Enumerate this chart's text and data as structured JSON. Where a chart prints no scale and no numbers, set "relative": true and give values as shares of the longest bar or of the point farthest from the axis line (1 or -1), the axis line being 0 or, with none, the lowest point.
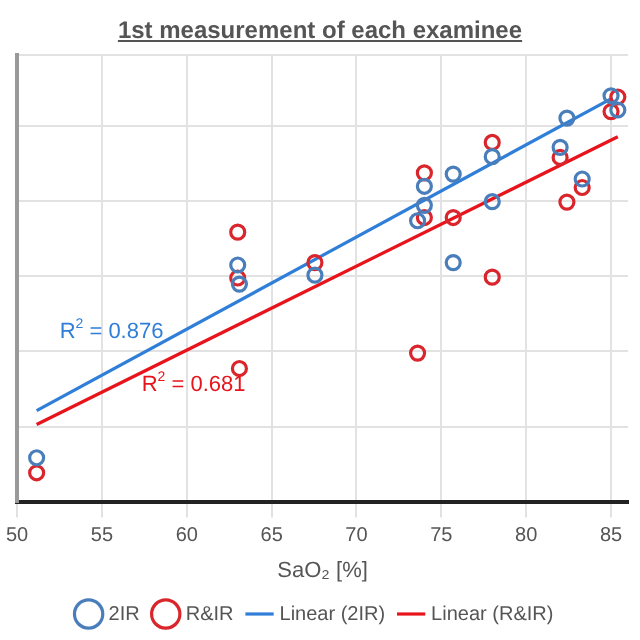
{
  "chart_data": {
    "type": "scatter",
    "title": "1st measurement of each examinee",
    "xlabel": "SaO₂ [%]",
    "relative": true,
    "xlim": [
      50,
      86
    ],
    "xticks": [
      {
        "value": 50,
        "label": "50"
      },
      55,
      60,
      65,
      70,
      75,
      80,
      85
    ],
    "grid": true,
    "legend": "bottom",
    "marker": "circle",
    "series": [
      {
        "name": "2IR",
        "color": "#4a7ebb",
        "x": [
          85.0,
          85.4,
          82.4,
          82.0,
          83.3,
          78.0,
          75.7,
          74.0,
          74.0,
          73.6,
          78.0,
          75.7,
          67.55,
          63.0,
          63.1,
          51.15
        ],
        "values": [
          1.0,
          0.965,
          0.945,
          0.873,
          0.795,
          0.85,
          0.807,
          0.777,
          0.73,
          0.692,
          0.739,
          0.589,
          0.558,
          0.583,
          0.536,
          0.108
        ]
      },
      {
        "name": "R&IR",
        "color": "#d9262c",
        "x": [
          85.4,
          85.0,
          78.0,
          82.0,
          83.3,
          82.4,
          74.0,
          74.0,
          75.7,
          78.0,
          67.55,
          63.0,
          63.0,
          63.1,
          73.6,
          51.15
        ],
        "values": [
          0.997,
          0.961,
          0.885,
          0.848,
          0.774,
          0.738,
          0.81,
          0.7,
          0.7,
          0.553,
          0.589,
          0.664,
          0.551,
          0.328,
          0.366,
          0.071
        ]
      },
      {
        "name": "Linear (2IR)",
        "type": "line",
        "marker": "none",
        "color": "#2f7ed8",
        "x": [
          51.15,
          85.1
        ],
        "values": [
          0.224,
          0.995
        ]
      },
      {
        "name": "Linear (R&IR)",
        "type": "line",
        "marker": "none",
        "color": "#e8141c",
        "x": [
          51.15,
          85.4
        ],
        "values": [
          0.19,
          0.899
        ]
      }
    ],
    "annotations": [
      "R$^{2}$ = 0.876",
      "R$^{2}$ = 0.681"
    ]
  }
}
